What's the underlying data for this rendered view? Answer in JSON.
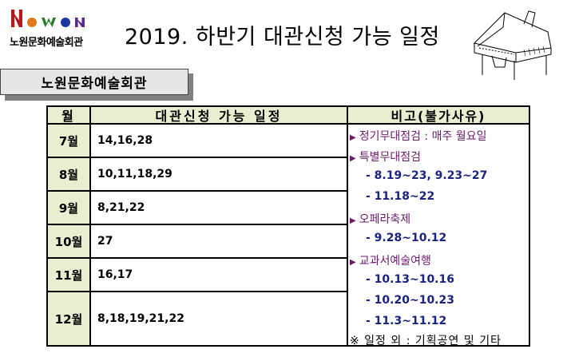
{
  "logo": {
    "letters": [
      "N",
      "o",
      "w",
      "o",
      "n"
    ],
    "letter_colors": [
      "#b01c1c",
      "#e07a1a",
      "#2a7a2a",
      "#1c3aa0",
      "#5a2a8a"
    ],
    "text": "노원문화예술회관"
  },
  "title": "2019. 하반기 대관신청 가능 일정",
  "venue": "노원문화예술회관",
  "table": {
    "headers": {
      "month": "월",
      "dates": "대관신청  가능  일정",
      "note": "비고(불가사유)"
    },
    "rows": [
      {
        "month": "7월",
        "dates": "14,16,28"
      },
      {
        "month": "8월",
        "dates": "10,11,18,29"
      },
      {
        "month": "9월",
        "dates": "8,21,22"
      },
      {
        "month": "10월",
        "dates": "27"
      },
      {
        "month": "11월",
        "dates": "16,17"
      },
      {
        "month": "12월",
        "dates": "8,18,19,21,22"
      }
    ],
    "notes": {
      "inspection": "정기무대점검 : 매주 월요일",
      "special": "특별무대점검",
      "special_1": "- 8.19~23,  9.23~27",
      "special_2": "- 11.18~22",
      "opera": "오페라축제",
      "opera_1": "- 9.28~10.12",
      "school": "교과서예술여행",
      "school_1": "-  10.13~10.16",
      "school_2": "-  10.20~10.23",
      "school_3": "-  11.3~11.12",
      "footnote": "※ 일정 외 : 기획공연 및 기타"
    },
    "colors": {
      "header_bg": "#e7efd0",
      "note_head": "#6b1a6b",
      "note_sub": "#1a237e"
    }
  },
  "icons": {
    "arrow": "triangle-right-icon",
    "piano": "grand-piano-icon"
  }
}
